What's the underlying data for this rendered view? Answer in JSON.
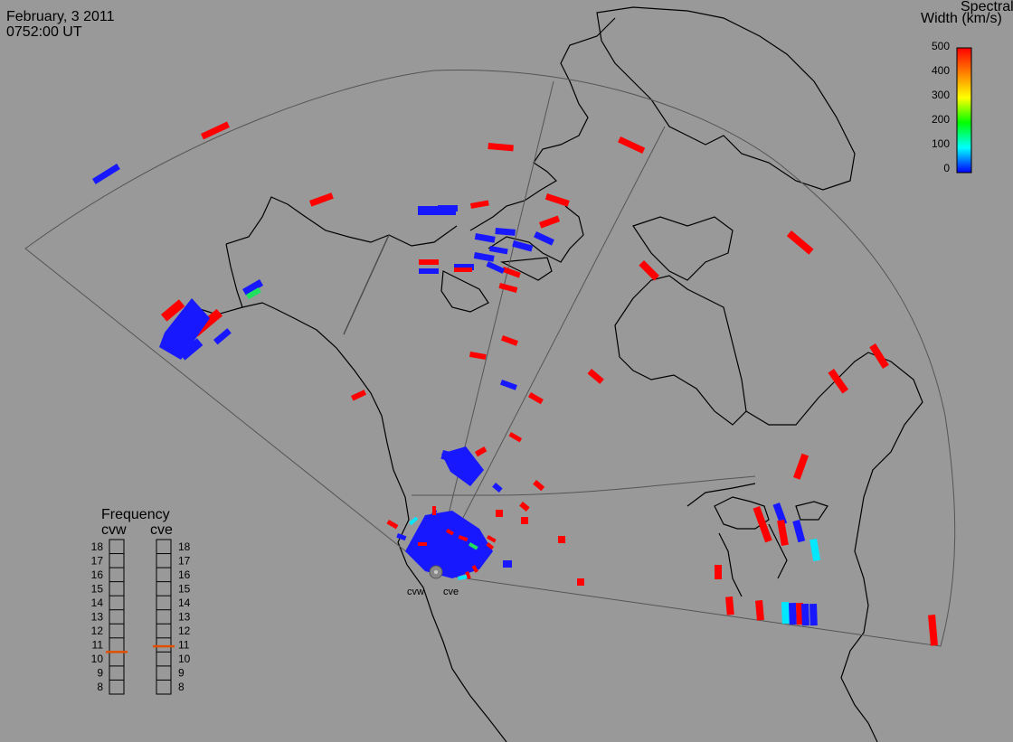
{
  "header": {
    "date": "February, 3 2011",
    "time": "0752:00 UT"
  },
  "legend": {
    "title_line1": "Spectral",
    "title_line2": "Width (km/s)",
    "ticks": [
      "500",
      "400",
      "300",
      "200",
      "100",
      "0"
    ],
    "range": [
      0,
      500
    ],
    "colors": [
      "#ff0000",
      "#ff8000",
      "#ffff00",
      "#00ff00",
      "#00ffff",
      "#0000ff"
    ]
  },
  "radars": {
    "names": [
      "cvw",
      "cve"
    ]
  },
  "frequency": {
    "title": "Frequency",
    "left_label": "cvw",
    "right_label": "cve",
    "ticks": [
      "18",
      "17",
      "16",
      "15",
      "14",
      "13",
      "12",
      "11",
      "10",
      "9",
      "8"
    ],
    "cvw_mhz": 10.5,
    "cve_mhz": 10.9,
    "marker_color": "#e05000"
  },
  "colors": {
    "background": "#999999",
    "red": "#ff0000",
    "blue": "#1818ff",
    "cyan": "#00e8ff",
    "green": "#20e060",
    "outline": "#333333"
  }
}
